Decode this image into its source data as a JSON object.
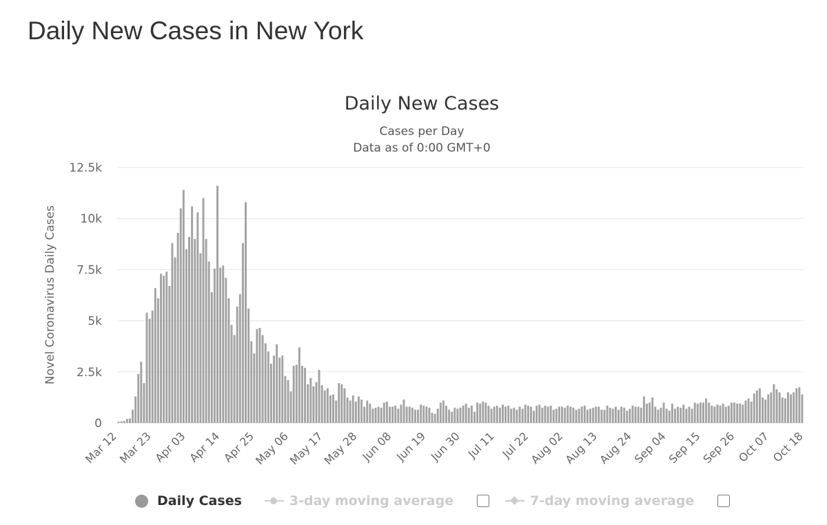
{
  "page_title": "Daily New Cases in New York",
  "colors": {
    "bar": "#a3a3a3",
    "grid": "#e6e6e6",
    "axis_text": "#666666"
  },
  "legend": {
    "daily": "Daily Cases",
    "ma3": "3-day moving average",
    "ma7": "7-day moving average"
  },
  "chart_data": {
    "type": "bar",
    "title": "Daily New Cases",
    "subtitle": [
      "Cases per Day",
      "Data as of 0:00 GMT+0"
    ],
    "ylabel": "Novel Coronavirus Daily Cases",
    "ylim": [
      0,
      12500
    ],
    "yticks": [
      0,
      2500,
      5000,
      7500,
      10000,
      12500
    ],
    "ytick_labels": [
      "0",
      "2.5k",
      "5k",
      "7.5k",
      "10k",
      "12.5k"
    ],
    "xtick_labels": [
      "Mar 12",
      "Mar 23",
      "Apr 03",
      "Apr 14",
      "Apr 25",
      "May 06",
      "May 17",
      "May 28",
      "Jun 08",
      "Jun 19",
      "Jun 30",
      "Jul 11",
      "Jul 22",
      "Aug 02",
      "Aug 13",
      "Aug 24",
      "Sep 04",
      "Sep 15",
      "Sep 26",
      "Oct 07",
      "Oct 18"
    ],
    "grid": true,
    "legend_position": "bottom",
    "series": [
      {
        "name": "Daily Cases",
        "categories_start": "Mar 12",
        "categories_end": "Oct 18",
        "values": [
          60,
          80,
          100,
          200,
          220,
          650,
          1300,
          2400,
          3000,
          1950,
          5400,
          5100,
          5500,
          6600,
          6100,
          7300,
          7200,
          7400,
          6700,
          8800,
          8100,
          9300,
          10500,
          11400,
          8500,
          9100,
          10600,
          9000,
          10300,
          8300,
          11000,
          9000,
          7900,
          6400,
          7550,
          11600,
          7600,
          7700,
          7100,
          6100,
          4800,
          4300,
          5700,
          6300,
          8800,
          10800,
          5600,
          4000,
          3400,
          4600,
          4650,
          4300,
          3900,
          3500,
          2900,
          3300,
          3850,
          3200,
          3300,
          2300,
          2100,
          1550,
          2800,
          2850,
          3700,
          2800,
          2700,
          1900,
          2200,
          1800,
          2000,
          2600,
          1850,
          1600,
          1700,
          1350,
          1400,
          1100,
          1950,
          1900,
          1700,
          1250,
          1100,
          1350,
          1050,
          1300,
          1150,
          800,
          1100,
          950,
          700,
          750,
          800,
          750,
          1000,
          1050,
          800,
          800,
          850,
          700,
          900,
          1150,
          800,
          800,
          750,
          650,
          650,
          900,
          850,
          800,
          750,
          500,
          450,
          700,
          1000,
          1100,
          850,
          650,
          550,
          750,
          700,
          750,
          850,
          950,
          750,
          850,
          550,
          1000,
          950,
          1050,
          1000,
          850,
          700,
          800,
          850,
          750,
          900,
          800,
          850,
          700,
          750,
          650,
          800,
          700,
          900,
          850,
          800,
          600,
          850,
          900,
          750,
          850,
          800,
          850,
          650,
          700,
          800,
          800,
          750,
          850,
          800,
          750,
          650,
          700,
          800,
          850,
          650,
          700,
          750,
          800,
          800,
          650,
          650,
          850,
          750,
          700,
          800,
          650,
          800,
          750,
          600,
          700,
          850,
          800,
          800,
          750,
          1300,
          950,
          1000,
          1250,
          800,
          650,
          750,
          1000,
          700,
          600,
          950,
          700,
          800,
          750,
          900,
          700,
          800,
          700,
          1000,
          950,
          1000,
          1000,
          1200,
          1000,
          850,
          800,
          900,
          850,
          950,
          800,
          850,
          1000,
          1000,
          950,
          950,
          900,
          1100,
          1200,
          1050,
          1450,
          1600,
          1700,
          1250,
          1150,
          1400,
          1500,
          1900,
          1650,
          1500,
          1250,
          1200,
          1500,
          1400,
          1500,
          1700,
          1750,
          1400
        ]
      }
    ]
  }
}
